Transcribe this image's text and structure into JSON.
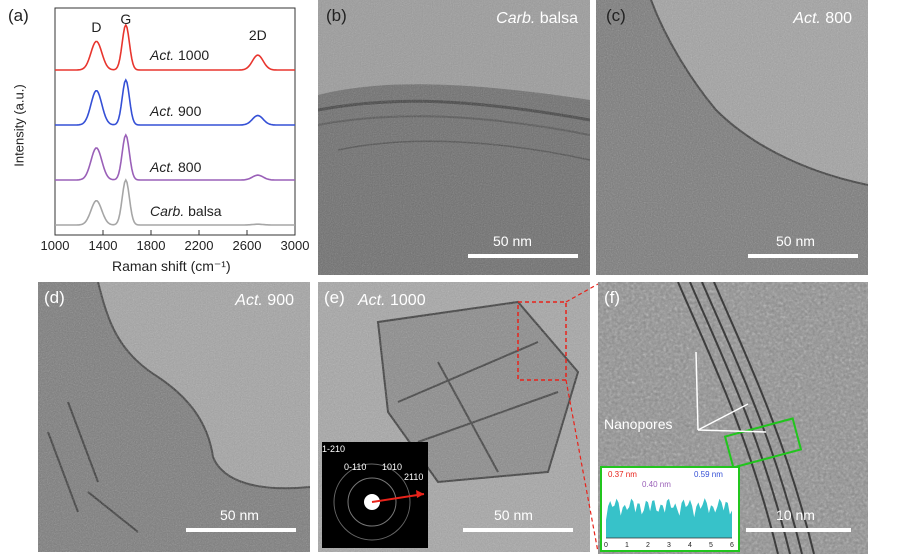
{
  "panels": {
    "a": {
      "label": "(a)",
      "chart_data": {
        "type": "line",
        "xlabel": "Raman shift (cm⁻¹)",
        "ylabel": "Intensity (a.u.)",
        "xlim": [
          1000,
          3000
        ],
        "xticks": [
          "1000",
          "1400",
          "1800",
          "2200",
          "2600",
          "3000"
        ],
        "peak_labels": [
          "D",
          "G",
          "2D"
        ],
        "series": [
          {
            "name": "Act. 1000",
            "prefix": "Act.",
            "suffix": " 1000",
            "color": "#e8352e",
            "ratio": 0.85,
            "twoD": 0.55
          },
          {
            "name": "Act. 900",
            "prefix": "Act.",
            "suffix": " 900",
            "color": "#3550d6",
            "ratio": 1.02,
            "twoD": 0.35
          },
          {
            "name": "Act. 800",
            "prefix": "Act.",
            "suffix": " 800",
            "color": "#9a60b8",
            "ratio": 0.95,
            "twoD": 0.18
          },
          {
            "name": "Carb. balsa",
            "prefix": "Carb.",
            "suffix": " balsa",
            "color": "#a6a6a6",
            "ratio": 0.72,
            "twoD": 0.03
          }
        ]
      }
    },
    "b": {
      "label": "(b)",
      "title_prefix": "Carb.",
      "title_suffix": " balsa",
      "scale": "50 nm"
    },
    "c": {
      "label": "(c)",
      "title_prefix": "Act.",
      "title_suffix": " 800",
      "scale": "50 nm"
    },
    "d": {
      "label": "(d)",
      "title_prefix": "Act.",
      "title_suffix": " 900",
      "scale": "50 nm"
    },
    "e": {
      "label": "(e)",
      "title_prefix": "Act.",
      "title_suffix": " 1000",
      "scale": "50 nm",
      "saed": [
        "1-210",
        "0-110",
        "1010",
        "2110"
      ]
    },
    "f": {
      "label": "(f)",
      "scale": "10 nm",
      "annotation": "Nanopores",
      "profile": {
        "d1": "0.37 nm",
        "d2": "0.40 nm",
        "d3": "0.59 nm",
        "xticks": [
          "0",
          "1",
          "2",
          "3",
          "4",
          "5",
          "6"
        ]
      }
    }
  },
  "colors": {
    "tem_bg": "#8c8c8c",
    "arrow_red": "#e8231b",
    "profile_fill": "#37c2c9",
    "box_green": "#21c51d"
  }
}
